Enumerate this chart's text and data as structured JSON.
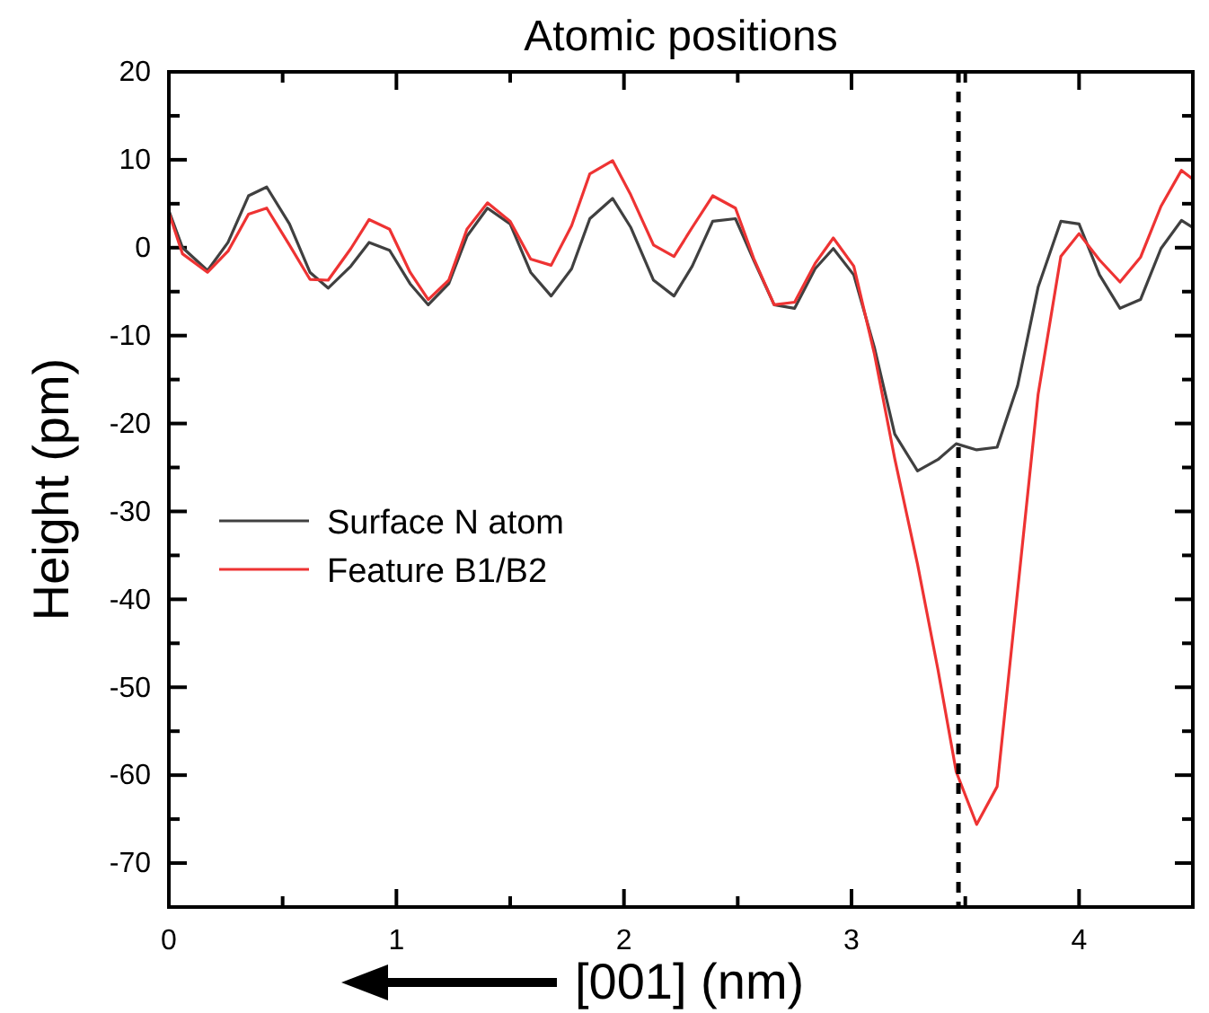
{
  "chart_data": {
    "type": "line",
    "title": "Atomic positions",
    "xlabel": "[001] (nm)",
    "ylabel": "Height (pm)",
    "x": [
      0,
      0.06,
      0.17,
      0.26,
      0.35,
      0.43,
      0.53,
      0.62,
      0.7,
      0.8,
      0.88,
      0.97,
      1.06,
      1.14,
      1.23,
      1.31,
      1.4,
      1.5,
      1.59,
      1.68,
      1.77,
      1.85,
      1.95,
      2.03,
      2.13,
      2.22,
      2.3,
      2.39,
      2.49,
      2.57,
      2.66,
      2.75,
      2.84,
      2.92,
      3.01,
      3.1,
      3.19,
      3.29,
      3.38,
      3.46,
      3.55,
      3.64,
      3.73,
      3.82,
      3.92,
      4.0,
      4.09,
      4.18,
      4.27,
      4.36,
      4.45,
      4.5
    ],
    "series": [
      {
        "name": "Surface N atom",
        "color": "#404040",
        "values": [
          4.2,
          0,
          -2.6,
          0.6,
          5.9,
          6.9,
          2.7,
          -2.8,
          -4.6,
          -2.1,
          0.6,
          -0.3,
          -4.1,
          -6.5,
          -4.1,
          1.3,
          4.5,
          2.7,
          -2.8,
          -5.5,
          -2.4,
          3.3,
          5.6,
          2.3,
          -3.7,
          -5.5,
          -2.1,
          3.0,
          3.3,
          -1.4,
          -6.5,
          -6.9,
          -2.4,
          -0.1,
          -3.1,
          -11.3,
          -21.2,
          -25.4,
          -24.1,
          -22.3,
          -23.0,
          -22.7,
          -15.7,
          -4.5,
          3.0,
          2.7,
          -3.1,
          -6.9,
          -5.9,
          -0.1,
          3.1,
          2.3
        ]
      },
      {
        "name": "Feature B1/B2",
        "color": "#ee3333",
        "values": [
          4,
          -0.7,
          -2.8,
          -0.4,
          3.8,
          4.5,
          0.3,
          -3.6,
          -3.7,
          -0.1,
          3.2,
          2.1,
          -2.8,
          -5.9,
          -3.7,
          2.1,
          5.1,
          3,
          -1.3,
          -2,
          2.5,
          8.4,
          9.9,
          6.0,
          0.3,
          -1.0,
          2.3,
          5.9,
          4.5,
          -1.2,
          -6.5,
          -6.2,
          -1.8,
          1.1,
          -2.1,
          -12,
          -24,
          -36,
          -48,
          -59.6,
          -65.6,
          -61.3,
          -39,
          -16.7,
          -1.0,
          1.6,
          -1.4,
          -3.9,
          -1.1,
          4.7,
          8.8,
          7.8
        ]
      }
    ],
    "xlim": [
      0,
      4.5
    ],
    "xticks": [
      0,
      {
        "value": 0.5,
        "label": null
      },
      1,
      {
        "value": 1.5,
        "label": null
      },
      2,
      {
        "value": 2.5,
        "label": null
      },
      3,
      {
        "value": 3.5,
        "label": null
      },
      4
    ],
    "ylim": [
      -75,
      20
    ],
    "yticks": [
      20,
      {
        "value": 15,
        "label": null
      },
      10,
      {
        "value": 5,
        "label": null
      },
      0,
      {
        "value": -5,
        "label": null
      },
      -10,
      {
        "value": -15,
        "label": null
      },
      -20,
      {
        "value": -25,
        "label": null
      },
      -30,
      {
        "value": -35,
        "label": null
      },
      -40,
      {
        "value": -45,
        "label": null
      },
      -50,
      {
        "value": -55,
        "label": null
      },
      -60,
      {
        "value": -65,
        "label": null
      },
      -70
    ],
    "ref_lines": [
      {
        "axis": "x",
        "value": 3.47,
        "color": "#000000",
        "line_style": "dashed"
      }
    ],
    "legend": "left",
    "grid": false,
    "marker": "none",
    "line_style": "solid"
  }
}
